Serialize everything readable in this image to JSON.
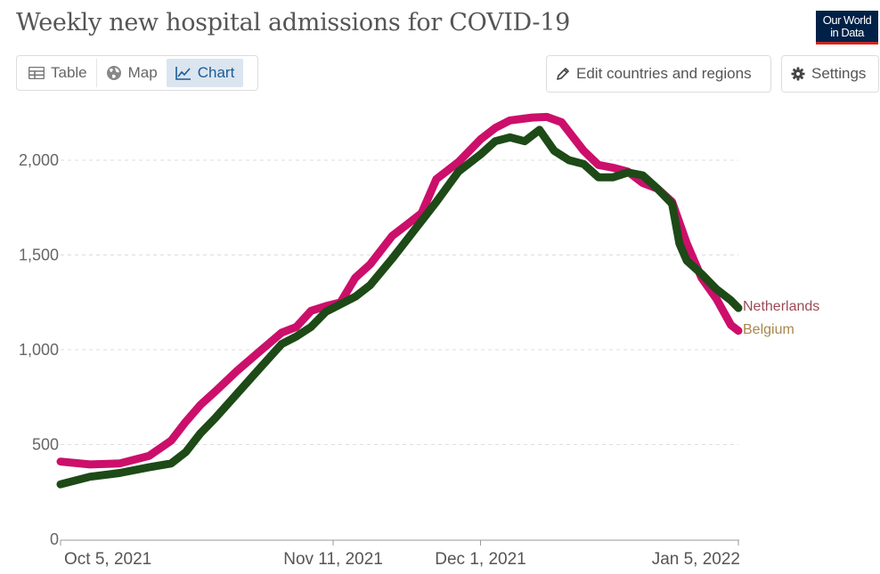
{
  "header": {
    "title": "Weekly new hospital admissions for COVID-19",
    "logo_line1": "Our World",
    "logo_line2": "in Data",
    "logo_color": "#002147",
    "logo_accent": "#ce261e"
  },
  "tabs": [
    {
      "label": "Table",
      "icon": "table-icon"
    },
    {
      "label": "Map",
      "icon": "globe-icon"
    },
    {
      "label": "Chart",
      "icon": "line-chart-icon",
      "active": true
    }
  ],
  "toolbar": {
    "edit_label": "Edit countries and regions",
    "settings_label": "Settings"
  },
  "chart_data": {
    "type": "line",
    "title": "Weekly new hospital admissions for COVID-19",
    "xlabel": "",
    "ylabel": "",
    "ylim": [
      0,
      2250
    ],
    "y_ticks": [
      {
        "value": 0,
        "label": "0"
      },
      {
        "value": 500,
        "label": "500"
      },
      {
        "value": 1000,
        "label": "1,000"
      },
      {
        "value": 1500,
        "label": "1,500"
      },
      {
        "value": 2000,
        "label": "2,000"
      }
    ],
    "x_range": [
      0,
      92
    ],
    "x_ticks": [
      {
        "day": 0,
        "label": "Oct 5, 2021"
      },
      {
        "day": 37,
        "label": "Nov 11, 2021"
      },
      {
        "day": 57,
        "label": "Dec 1, 2021"
      },
      {
        "day": 92,
        "label": "Jan 5, 2022"
      }
    ],
    "grid": "horizontal",
    "legend_position": "right-end-labels",
    "series": [
      {
        "name": "Belgium",
        "line_color": "#cc0f6a",
        "label_color": "#a8874e",
        "days": [
          0,
          4,
          8,
          12,
          15,
          17,
          19,
          21,
          24,
          27,
          30,
          32,
          34,
          36,
          38,
          40,
          42,
          45,
          47,
          49,
          51,
          54,
          57,
          59,
          61,
          64,
          66,
          68,
          69,
          71,
          73,
          75,
          77,
          79,
          81,
          83,
          85,
          87,
          89,
          91,
          92
        ],
        "values": [
          410,
          395,
          400,
          440,
          520,
          620,
          710,
          780,
          890,
          990,
          1090,
          1120,
          1205,
          1230,
          1250,
          1380,
          1450,
          1600,
          1660,
          1720,
          1900,
          1990,
          2110,
          2170,
          2210,
          2225,
          2228,
          2200,
          2150,
          2050,
          1975,
          1960,
          1940,
          1880,
          1850,
          1780,
          1560,
          1380,
          1270,
          1130,
          1100
        ]
      },
      {
        "name": "Netherlands",
        "line_color": "#1d4a17",
        "label_color": "#9c4a55",
        "days": [
          0,
          4,
          8,
          12,
          15,
          17,
          19,
          21,
          24,
          27,
          30,
          32,
          34,
          36,
          38,
          40,
          42,
          45,
          47,
          49,
          51,
          54,
          57,
          59,
          61,
          63,
          65,
          67,
          69,
          71,
          73,
          75,
          77,
          79,
          81,
          83,
          84,
          85,
          87,
          89,
          91,
          92
        ],
        "values": [
          290,
          330,
          350,
          380,
          400,
          460,
          560,
          640,
          770,
          900,
          1030,
          1070,
          1120,
          1200,
          1240,
          1280,
          1340,
          1480,
          1580,
          1680,
          1780,
          1940,
          2030,
          2100,
          2120,
          2100,
          2160,
          2050,
          2000,
          1980,
          1910,
          1910,
          1935,
          1920,
          1850,
          1770,
          1560,
          1470,
          1400,
          1320,
          1260,
          1220
        ]
      }
    ]
  }
}
